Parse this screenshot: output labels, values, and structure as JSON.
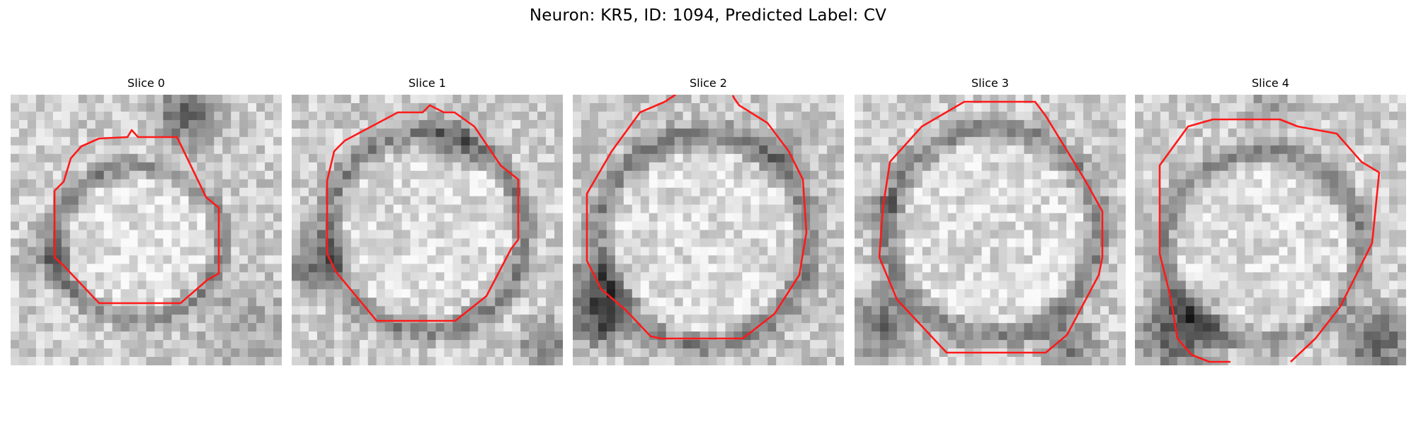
{
  "figure": {
    "title": "Neuron: KR5, ID: 1094, Predicted Label: CV"
  },
  "panels": [
    {
      "title": "Slice 0"
    },
    {
      "title": "Slice 1"
    },
    {
      "title": "Slice 2"
    },
    {
      "title": "Slice 3"
    },
    {
      "title": "Slice 4"
    }
  ],
  "colors": {
    "contour": "#ff1a1a",
    "background": "#ffffff"
  }
}
